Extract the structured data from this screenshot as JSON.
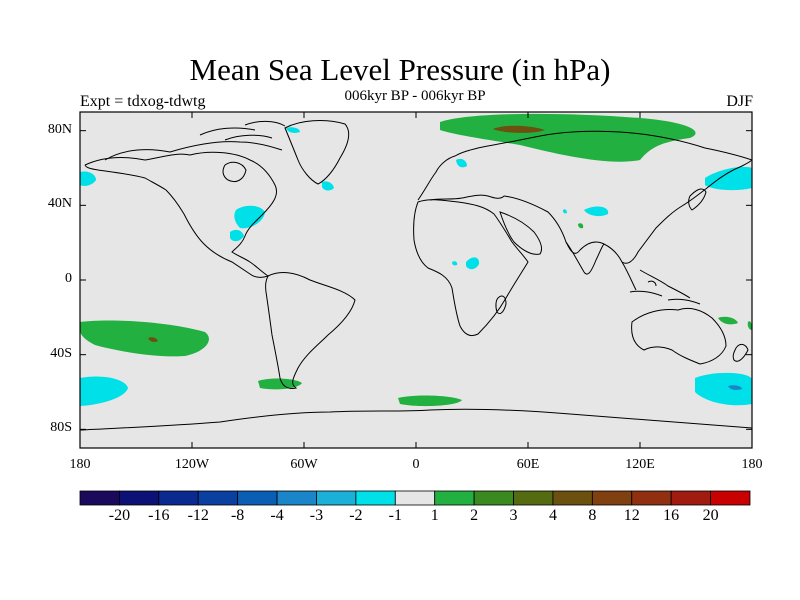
{
  "header": {
    "title": "Mean Sea Level Pressure (in hPa)",
    "subtitle": "006kyr BP - 006kyr BP",
    "experiment": "Expt = tdxog-tdwtg",
    "season": "DJF"
  },
  "axes": {
    "lat_labels": [
      "80N",
      "40N",
      "0",
      "40S",
      "80S"
    ],
    "lat_values": [
      80,
      40,
      0,
      -40,
      -80
    ],
    "lon_labels": [
      "180",
      "120W",
      "60W",
      "0",
      "60E",
      "120E",
      "180"
    ],
    "lon_values": [
      -180,
      -120,
      -60,
      0,
      60,
      120,
      180
    ]
  },
  "colorbar": {
    "colors": [
      "#1a0a5c",
      "#0d1075",
      "#0a2a90",
      "#0a40a0",
      "#0a5fb5",
      "#1a85c8",
      "#1ab0d8",
      "#00e0e8",
      "#e6e6e6",
      "#22b040",
      "#3a8a20",
      "#556b10",
      "#6b5010",
      "#804010",
      "#903010",
      "#a01c10",
      "#c80000"
    ],
    "labels": [
      "-20",
      "-16",
      "-12",
      "-8",
      "-4",
      "-3",
      "-2",
      "-1",
      "1",
      "2",
      "3",
      "4",
      "8",
      "12",
      "16",
      "20"
    ],
    "label_colors_ignored": false
  },
  "map": {
    "ocean_color": "#e6e6e6",
    "positive_color": "#22b040",
    "negative_color": "#00e0e8",
    "strong_positive_color": "#6b5010",
    "strong_negative_color": "#1a85c8"
  }
}
